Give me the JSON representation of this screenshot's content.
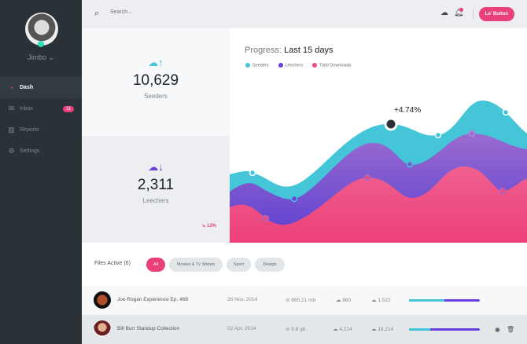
{
  "user": {
    "name": "Jimbo"
  },
  "sidebar": {
    "items": [
      {
        "label": "Dash",
        "icon": "dashboard-icon"
      },
      {
        "label": "Inbox",
        "icon": "inbox-icon",
        "badge": "11"
      },
      {
        "label": "Reports",
        "icon": "chart-icon"
      },
      {
        "label": "Settings",
        "icon": "gear-icon"
      }
    ]
  },
  "header": {
    "search_placeholder": "Search...",
    "button": "Le' Button"
  },
  "stats": {
    "seeders": {
      "value": "10,629",
      "label": "Seeders"
    },
    "leechers": {
      "value": "2,311",
      "label": "Leechers",
      "change": "12%"
    }
  },
  "chart": {
    "title_prefix": "Progress:",
    "title": "Last 15 days",
    "legend": [
      {
        "name": "Seeders",
        "color": "#44c5d8"
      },
      {
        "name": "Leechers",
        "color": "#6a3fe0"
      },
      {
        "name": "Total Downloads",
        "color": "#ef4a80"
      }
    ],
    "annotation": "+4.74%"
  },
  "files": {
    "title": "Files Active (6)",
    "filters": [
      "All",
      "Movies & Tv Shows",
      "Sport",
      "Design"
    ],
    "active_filter": "All",
    "rows": [
      {
        "name": "Joe Rogan Experience Ep. 468",
        "date": "26 Nov, 2014",
        "size": "965.21 mb",
        "up": "860",
        "down": "1,522",
        "progress": 0.5
      },
      {
        "name": "Bill Burr Standup Collection",
        "date": "02 Apr, 2014",
        "size": "9.8 gb",
        "up": "4,214",
        "down": "19,214",
        "progress": 0.3
      }
    ]
  }
}
